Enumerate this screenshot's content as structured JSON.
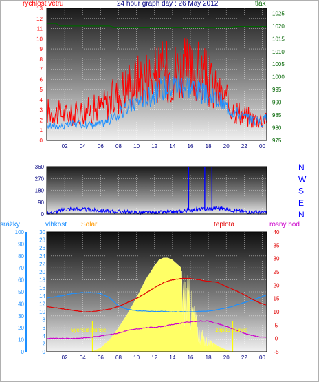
{
  "header": {
    "title": "24 hour graph day : 26 May 2012"
  },
  "colors": {
    "wind": "#ff0000",
    "wind_dir": "#0000ff",
    "pressure": "#006400",
    "humidity": "#1e90ff",
    "solar": "#ffff66",
    "temperature": "#e00000",
    "dewpoint": "#cc00cc",
    "rain": "#1e90ff",
    "tick_text_x": "#000080",
    "rain_axis_text": "#1e90ff",
    "humidity_axis_text": "#1e90ff",
    "temp_axis_text": "#e00000",
    "solar_label": "#ff9900"
  },
  "chart_data": [
    {
      "type": "line",
      "name": "wind-panel",
      "labels": {
        "left": "rychlost větru",
        "right": "tlak"
      },
      "x_ticks": [
        "02",
        "04",
        "06",
        "08",
        "10",
        "12",
        "14",
        "16",
        "18",
        "20",
        "22",
        "00"
      ],
      "y_left_ticks": [
        0,
        1,
        2,
        3,
        4,
        5,
        6,
        7,
        8,
        9,
        10,
        11,
        12,
        13
      ],
      "y_left_range": [
        0,
        13
      ],
      "y_right_ticks": [
        975,
        980,
        985,
        990,
        995,
        1000,
        1005,
        1010,
        1015,
        1020,
        1025
      ],
      "y_right_range": [
        975,
        1027
      ],
      "pressure": {
        "hours": [
          0,
          1,
          1.5,
          7,
          7.5,
          20.5,
          21,
          24.5
        ],
        "values": [
          1021,
          1021,
          1020,
          1020,
          1019.5,
          1019.5,
          1019.8,
          1019.8
        ]
      },
      "wind_avg_envelope": {
        "hours": [
          0,
          1,
          2,
          3,
          4,
          5,
          6,
          7,
          8,
          9,
          10,
          11,
          12,
          13,
          14,
          15,
          16,
          17,
          18,
          19,
          20,
          21,
          22,
          23,
          24,
          24.5
        ],
        "values": [
          1.5,
          1.4,
          1.4,
          1.6,
          1.6,
          1.5,
          1.6,
          2.0,
          2.6,
          3.2,
          3.8,
          4.2,
          4.6,
          5.2,
          5.5,
          5.6,
          5.4,
          4.8,
          4.3,
          4.0,
          3.4,
          2.8,
          2.3,
          2.0,
          1.7,
          2.4
        ]
      },
      "wind_gust_envelope": {
        "hours": [
          0,
          1,
          2,
          3,
          4,
          5,
          6,
          7,
          8,
          9,
          10,
          11,
          12,
          13,
          14,
          15,
          16,
          17,
          18,
          19,
          20,
          21,
          22,
          23,
          24,
          24.5
        ],
        "values": [
          3.5,
          3.2,
          3.0,
          3.0,
          3.5,
          3.5,
          4.0,
          4.5,
          5.5,
          6.5,
          7.0,
          7.5,
          7.5,
          8.0,
          8.0,
          8.5,
          8.0,
          8.0,
          7.0,
          5.5,
          4.5,
          3.5,
          3.0,
          2.5,
          2.5,
          3.0
        ]
      }
    },
    {
      "type": "line",
      "name": "wind-direction-panel",
      "y_left_ticks": [
        0,
        90,
        180,
        270,
        360
      ],
      "y_left_range": [
        0,
        360
      ],
      "y_right_ticks": [
        "N",
        "W",
        "S",
        "E",
        "N"
      ],
      "direction": {
        "hours": [
          0,
          1,
          2,
          3,
          4,
          5,
          6,
          7,
          8,
          9,
          10,
          11,
          12,
          13,
          14,
          15,
          16,
          17,
          18,
          19,
          20,
          21,
          22,
          23,
          24,
          24.5
        ],
        "values": [
          5,
          15,
          35,
          40,
          35,
          30,
          25,
          20,
          18,
          15,
          12,
          10,
          10,
          12,
          15,
          20,
          30,
          35,
          40,
          45,
          40,
          25,
          20,
          15,
          10,
          15
        ]
      },
      "spikes_hours": [
        15.8,
        17.6,
        18.4
      ]
    },
    {
      "type": "line",
      "name": "weather-panel",
      "labels": {
        "rain": "srážky",
        "humidity": "vlhkost",
        "solar": "Solar",
        "temperature": "teplota",
        "dewpoint": "rosný bod"
      },
      "annotations": {
        "sunrise": "východ slunce",
        "sunset": "západ slunce",
        "sunrise_hour": 5.1,
        "sunset_hour": 20.7
      },
      "x_ticks": [
        "02",
        "04",
        "06",
        "08",
        "10",
        "12",
        "14",
        "16",
        "18",
        "20",
        "22",
        "00"
      ],
      "rain_ticks": [
        0,
        10,
        20,
        30,
        40,
        50,
        60,
        70,
        80,
        90,
        100
      ],
      "rain_range": [
        0,
        100
      ],
      "humidity_ticks": [
        0,
        2,
        4,
        6,
        8,
        10,
        12,
        14,
        16,
        18,
        20,
        22,
        24,
        26,
        28,
        30
      ],
      "humidity_range": [
        0,
        30
      ],
      "temp_ticks": [
        -5,
        0,
        5,
        10,
        15,
        20,
        25,
        30,
        35,
        40
      ],
      "temp_range": [
        -5,
        40
      ],
      "temperature": {
        "hours": [
          0,
          1,
          2,
          3,
          4,
          5,
          6,
          7,
          8,
          9,
          10,
          11,
          12,
          13,
          14,
          15,
          16,
          17,
          18,
          19,
          20,
          21,
          22,
          23,
          24,
          24.5
        ],
        "values": [
          12,
          11.5,
          11,
          10.5,
          10,
          10,
          10.5,
          11,
          12,
          13.5,
          15,
          17,
          19,
          21,
          22,
          22.5,
          22.5,
          22,
          21.5,
          21,
          19.5,
          18,
          16.5,
          14.5,
          13,
          12.5
        ]
      },
      "humidity": {
        "hours": [
          0,
          1,
          2,
          3,
          4,
          5,
          6,
          7,
          8,
          9,
          10,
          11,
          12,
          13,
          14,
          15,
          16,
          17,
          18,
          19,
          20,
          21,
          22,
          23,
          24,
          24.5
        ],
        "values": [
          13.5,
          13.8,
          14.2,
          14.6,
          14.8,
          14.8,
          14.6,
          13.5,
          11.5,
          10.6,
          10.3,
          10.2,
          10.1,
          10.1,
          10.0,
          10.0,
          10.0,
          10.1,
          10.2,
          10.5,
          11.0,
          11.6,
          12.3,
          13.0,
          13.8,
          14.1
        ]
      },
      "dewpoint": {
        "hours": [
          0,
          1,
          2,
          3,
          4,
          5,
          6,
          7,
          8,
          9,
          10,
          11,
          12,
          13,
          14,
          15,
          16,
          17,
          18,
          19,
          20,
          21,
          22,
          23,
          24,
          24.5
        ],
        "values": [
          0,
          0,
          0,
          0,
          0.2,
          0.5,
          1.0,
          1.5,
          2.0,
          3.0,
          3.5,
          4.0,
          4.2,
          4.6,
          5.2,
          5.8,
          6.2,
          6.5,
          6.5,
          5.5,
          4.5,
          3.2,
          2.0,
          1.0,
          0.5,
          0.3
        ]
      },
      "solar": {
        "hours": [
          5,
          6,
          7,
          8,
          9,
          10,
          11,
          12,
          12.5,
          13,
          13.5,
          14,
          14.5,
          15,
          15.5,
          16,
          16.5,
          17,
          18,
          19,
          20,
          20.7
        ],
        "values_scaled": [
          0,
          1,
          3,
          6,
          9.5,
          13.5,
          18,
          21.5,
          23,
          23.5,
          23.5,
          23,
          22,
          21,
          19,
          16,
          11,
          6,
          3,
          1.5,
          0.5,
          0
        ]
      },
      "rain": {
        "hours": [],
        "values": []
      }
    }
  ]
}
